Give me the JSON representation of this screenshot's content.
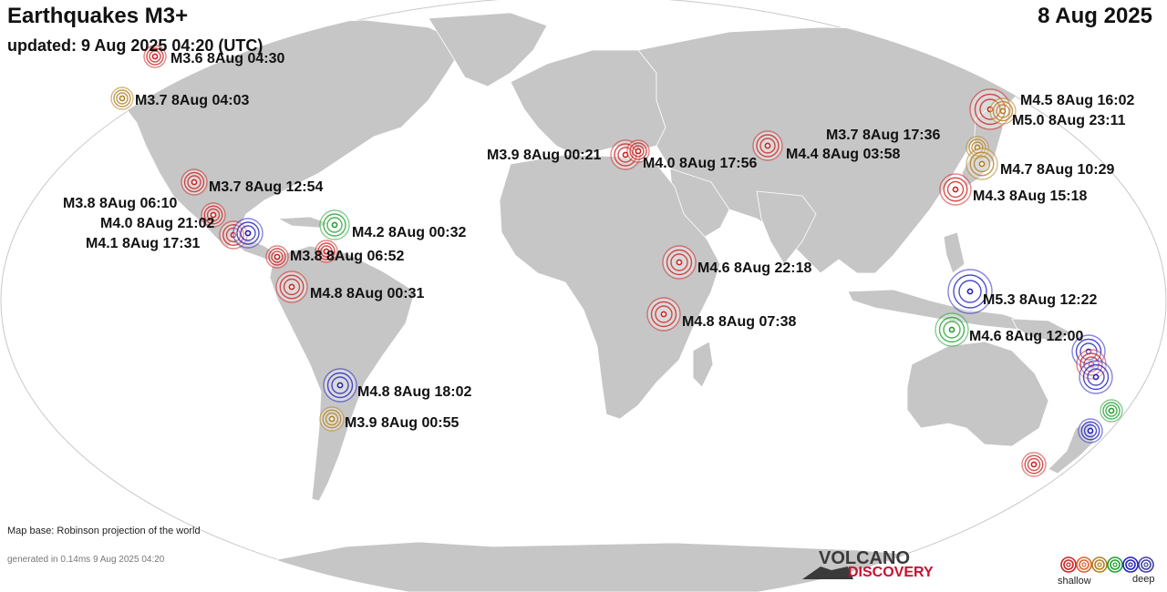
{
  "header": {
    "title": "Earthquakes M3+",
    "updated": "updated:  9 Aug 2025 04:20 (UTC)",
    "date": "8 Aug 2025"
  },
  "footer": {
    "map_base": "Map base: Robinson projection of the world",
    "generated": "generated in 0.14ms  9 Aug 2025 04:20"
  },
  "logo": {
    "line1": "VOLCANO",
    "line2": "DISCOVERY"
  },
  "legend": {
    "shallow": "shallow",
    "deep": "deep",
    "colors": [
      "#cc2222",
      "#e06030",
      "#b08020",
      "#22a030",
      "#2020c0",
      "#4040a0"
    ]
  },
  "colors": {
    "land": "#c6c6c6",
    "ocean": "#ffffff",
    "shallow": "#cc2222",
    "intermediate": "#b08020",
    "mid": "#22a030",
    "deep": "#2020c0"
  },
  "quakes": [
    {
      "label": "M3.6  8Aug 04:30"
    },
    {
      "label": "M3.7  8Aug 04:03"
    },
    {
      "label": "M3.7  8Aug 12:54"
    },
    {
      "label": "M3.8  8Aug 06:10"
    },
    {
      "label": "M4.0  8Aug 21:02"
    },
    {
      "label": "M4.1  8Aug 17:31"
    },
    {
      "label": "M4.2  8Aug 00:32"
    },
    {
      "label": "M3.8  8Aug 06:52"
    },
    {
      "label": "M4.8  8Aug 00:31"
    },
    {
      "label": "M4.8  8Aug 18:02"
    },
    {
      "label": "M3.9  8Aug 00:55"
    },
    {
      "label": "M3.9  8Aug 00:21"
    },
    {
      "label": "M4.0  8Aug 17:56"
    },
    {
      "label": "M4.4  8Aug 03:58"
    },
    {
      "label": "M4.6  8Aug 22:18"
    },
    {
      "label": "M4.8  8Aug 07:38"
    },
    {
      "label": "M4.5  8Aug 16:02"
    },
    {
      "label": "M5.0  8Aug 23:11"
    },
    {
      "label": "M3.7  8Aug 17:36"
    },
    {
      "label": "M4.7  8Aug 10:29"
    },
    {
      "label": "M4.3  8Aug 15:18"
    },
    {
      "label": "M5.3  8Aug 12:22"
    },
    {
      "label": "M4.6  8Aug 12:00"
    }
  ]
}
